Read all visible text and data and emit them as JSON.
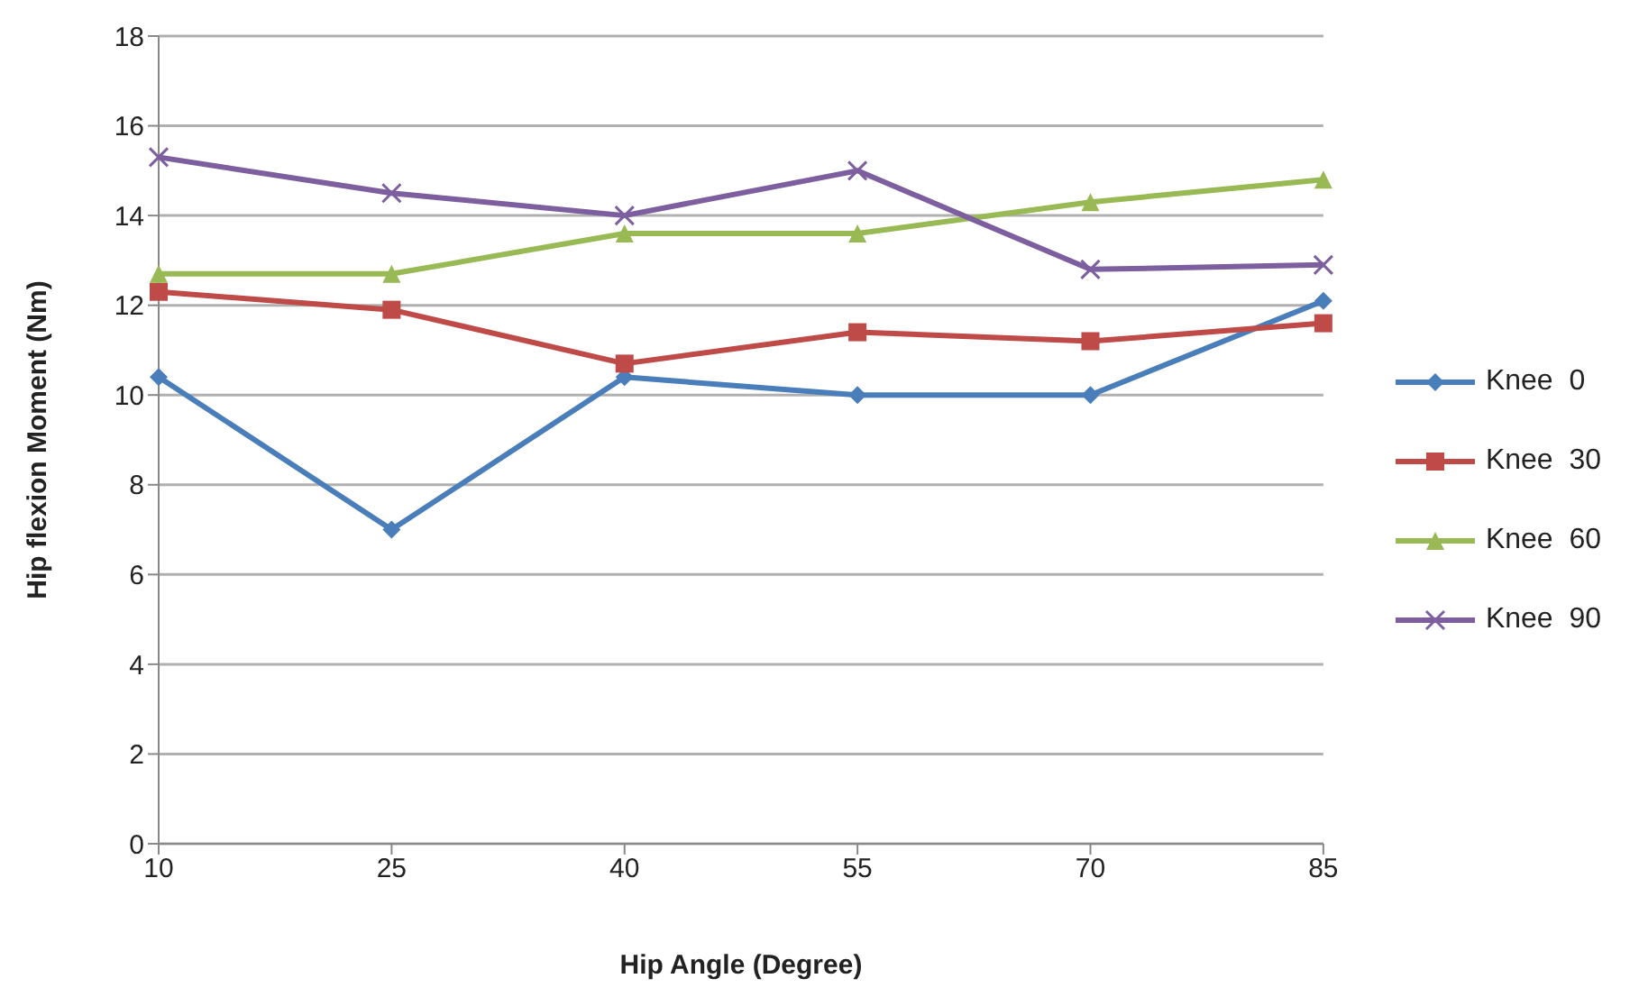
{
  "chart_data": {
    "type": "line",
    "xlabel": "Hip Angle (Degree)",
    "ylabel": "Hip flexion Moment (Nm)",
    "categories": [
      "10",
      "25",
      "40",
      "55",
      "70",
      "85"
    ],
    "ylim": [
      0,
      18
    ],
    "yticks": [
      0,
      2,
      4,
      6,
      8,
      10,
      12,
      14,
      16,
      18
    ],
    "grid": "y",
    "legend": "right",
    "series": [
      {
        "name": "Knee  0",
        "color": "#4a7ebb",
        "marker": "diamond",
        "values": [
          10.4,
          7.0,
          10.4,
          10.0,
          10.0,
          12.1
        ]
      },
      {
        "name": "Knee  30",
        "color": "#be4b48",
        "marker": "square",
        "values": [
          12.3,
          11.9,
          10.7,
          11.4,
          11.2,
          11.6
        ]
      },
      {
        "name": "Knee  60",
        "color": "#98b954",
        "marker": "triangle",
        "values": [
          12.7,
          12.7,
          13.6,
          13.6,
          14.3,
          14.8
        ]
      },
      {
        "name": "Knee  90",
        "color": "#7d5fa0",
        "marker": "cross",
        "values": [
          15.3,
          14.5,
          14.0,
          15.0,
          12.8,
          12.9
        ]
      }
    ]
  }
}
